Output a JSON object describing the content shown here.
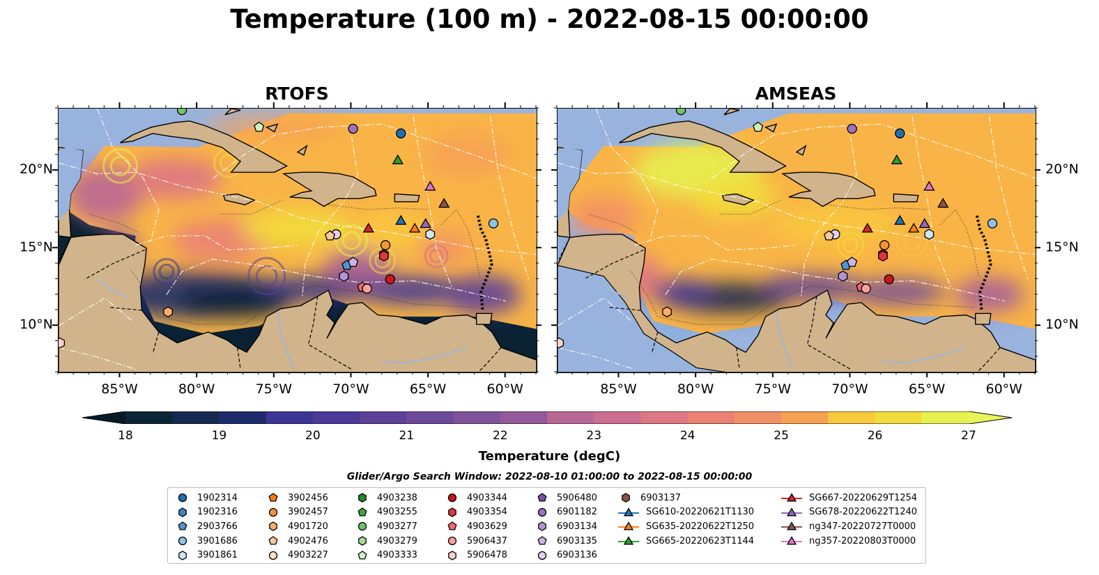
{
  "title": "Temperature (100 m) - 2022-08-15 00:00:00",
  "panels": [
    {
      "title": "RTOFS",
      "variant": "rtofs"
    },
    {
      "title": "AMSEAS",
      "variant": "amseas"
    }
  ],
  "axes": {
    "lon_range": [
      -89,
      -58
    ],
    "lat_range": [
      7,
      24
    ],
    "x_ticks": [
      "85°W",
      "80°W",
      "75°W",
      "70°W",
      "65°W",
      "60°W"
    ],
    "x_tick_values": [
      -85,
      -80,
      -75,
      -70,
      -65,
      -60
    ],
    "y_ticks": [
      "20°N",
      "15°N",
      "10°N"
    ],
    "y_tick_values": [
      20,
      15,
      10
    ]
  },
  "colorbar": {
    "label": "Temperature (degC)",
    "min": 18,
    "max": 27,
    "step": 0.5,
    "extend": "both",
    "ticks": [
      "18",
      "19",
      "20",
      "21",
      "22",
      "23",
      "24",
      "25",
      "26",
      "27"
    ],
    "colors": [
      "#0b2436",
      "#15284f",
      "#1e2b6a",
      "#2c2f8a",
      "#3b3596",
      "#4b3a97",
      "#5d4198",
      "#6e4a9a",
      "#80529a",
      "#93599a",
      "#a66099",
      "#b96795",
      "#cc6e8f",
      "#dd7783",
      "#ea8274",
      "#f29065",
      "#f7a155",
      "#f9b447",
      "#f8c83d",
      "#f2dc3b",
      "#e6f14f"
    ],
    "under_color": "#071a28",
    "over_color": "#e8f55a"
  },
  "map_colors": {
    "land": "#d1b48c",
    "shelf": "#98b3dd",
    "deep_rtofs": "#0a2233"
  },
  "search_window": "Glider/Argo Search Window: 2022-08-10 01:00:00 to 2022-08-15 00:00:00",
  "legend": {
    "columns": [
      [
        {
          "label": "1902314",
          "marker": "circle",
          "color": "#1f6fb4"
        },
        {
          "label": "1902316",
          "marker": "hexagon",
          "color": "#3a86c5"
        },
        {
          "label": "2903766",
          "marker": "pentagon",
          "color": "#4f96d0"
        },
        {
          "label": "3901686",
          "marker": "circle",
          "color": "#8fc3e6"
        },
        {
          "label": "3901861",
          "marker": "hexagon",
          "color": "#cfe6f5"
        }
      ],
      [
        {
          "label": "3902456",
          "marker": "pentagon",
          "color": "#f27d0c"
        },
        {
          "label": "3902457",
          "marker": "circle",
          "color": "#f7943a"
        },
        {
          "label": "4901720",
          "marker": "hexagon",
          "color": "#fbac69"
        },
        {
          "label": "4902476",
          "marker": "pentagon",
          "color": "#fdc89a"
        },
        {
          "label": "4903227",
          "marker": "circle",
          "color": "#fde2c6"
        }
      ],
      [
        {
          "label": "4903238",
          "marker": "hexagon",
          "color": "#248a2a"
        },
        {
          "label": "4903255",
          "marker": "pentagon",
          "color": "#3fa547"
        },
        {
          "label": "4903277",
          "marker": "circle",
          "color": "#6cc56b"
        },
        {
          "label": "4903279",
          "marker": "hexagon",
          "color": "#a0dc96"
        },
        {
          "label": "4903333",
          "marker": "pentagon",
          "color": "#cdf2c2"
        }
      ],
      [
        {
          "label": "4903344",
          "marker": "circle",
          "color": "#c8161c"
        },
        {
          "label": "4903354",
          "marker": "hexagon",
          "color": "#e0373d"
        },
        {
          "label": "4903629",
          "marker": "pentagon",
          "color": "#ef6a6a"
        },
        {
          "label": "5906437",
          "marker": "circle",
          "color": "#f7a09c"
        },
        {
          "label": "5906478",
          "marker": "hexagon",
          "color": "#fbd0cc"
        }
      ],
      [
        {
          "label": "5906480",
          "marker": "pentagon",
          "color": "#7b50aa"
        },
        {
          "label": "6901182",
          "marker": "circle",
          "color": "#9a72c2"
        },
        {
          "label": "6903134",
          "marker": "hexagon",
          "color": "#b594d6"
        },
        {
          "label": "6903135",
          "marker": "pentagon",
          "color": "#cdb4e6"
        },
        {
          "label": "6903136",
          "marker": "circle",
          "color": "#e2d2f2"
        }
      ],
      [
        {
          "label": "6903137",
          "marker": "hexagon",
          "color": "#8a5344"
        },
        {
          "label": "SG610-20220621T1130",
          "marker": "triangle",
          "color": "#1f77b4",
          "line": true
        },
        {
          "label": "SG635-20220622T1250",
          "marker": "triangle",
          "color": "#ff7f0e",
          "line": true
        },
        {
          "label": "SG665-20220623T1144",
          "marker": "triangle",
          "color": "#2ca02c",
          "line": true
        }
      ],
      [
        {
          "label": "SG667-20220629T1254",
          "marker": "triangle",
          "color": "#d62728",
          "line": true
        },
        {
          "label": "SG678-20220622T1240",
          "marker": "triangle",
          "color": "#9467bd",
          "line": true
        },
        {
          "label": "ng347-20220727T0000",
          "marker": "triangle",
          "color": "#8c564b",
          "line": true
        },
        {
          "label": "ng357-20220803T0000",
          "marker": "triangle",
          "color": "#e377c2",
          "line": true
        }
      ]
    ]
  },
  "observations": [
    {
      "id": "1902314",
      "lon": -66.8,
      "lat": 22.4
    },
    {
      "id": "6901182",
      "lon": -69.9,
      "lat": 22.7
    },
    {
      "id": "4903277",
      "lon": -81.0,
      "lat": 23.9
    },
    {
      "id": "4903333",
      "lon": -76.0,
      "lat": 22.8
    },
    {
      "id": "3901686",
      "lon": -60.8,
      "lat": 16.6
    },
    {
      "id": "3901861",
      "lon": -64.9,
      "lat": 15.9
    },
    {
      "id": "6903136",
      "lon": -71.0,
      "lat": 15.9
    },
    {
      "id": "4902476",
      "lon": -71.4,
      "lat": 15.8
    },
    {
      "id": "3902457",
      "lon": -67.8,
      "lat": 15.2
    },
    {
      "id": "6903137",
      "lon": -67.9,
      "lat": 14.6
    },
    {
      "id": "4903354",
      "lon": -67.9,
      "lat": 14.5
    },
    {
      "id": "2903766",
      "lon": -70.3,
      "lat": 13.9
    },
    {
      "id": "6903135",
      "lon": -69.9,
      "lat": 14.1
    },
    {
      "id": "6903134",
      "lon": -70.5,
      "lat": 13.2
    },
    {
      "id": "4903344",
      "lon": -67.5,
      "lat": 13.0
    },
    {
      "id": "4903629",
      "lon": -69.3,
      "lat": 12.5
    },
    {
      "id": "5906437",
      "lon": -69.0,
      "lat": 12.4
    },
    {
      "id": "4901720",
      "lon": -81.9,
      "lat": 10.9
    },
    {
      "id": "5906478",
      "lon": -88.9,
      "lat": 8.9
    },
    {
      "id": "SG667-20220629T1254",
      "lon": -68.9,
      "lat": 16.3
    },
    {
      "id": "SG610-20220621T1130",
      "lon": -66.8,
      "lat": 16.8
    },
    {
      "id": "SG635-20220622T1250",
      "lon": -65.9,
      "lat": 16.3
    },
    {
      "id": "SG678-20220622T1240",
      "lon": -65.2,
      "lat": 16.6
    },
    {
      "id": "SG665-20220623T1144",
      "lon": -67.0,
      "lat": 20.7
    },
    {
      "id": "ng357-20220803T0000",
      "lon": -64.9,
      "lat": 19.0
    },
    {
      "id": "ng347-20220727T0000",
      "lon": -64.0,
      "lat": 17.9
    }
  ]
}
